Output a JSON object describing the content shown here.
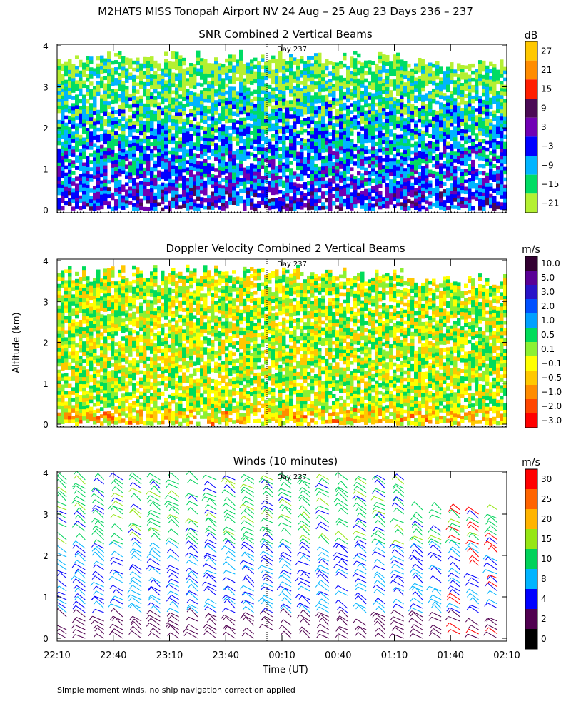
{
  "main_title": "M2HATS MISS Tonopah Airport NV  24 Aug – 25 Aug 23 Days 236 – 237",
  "y_axis_label": "Altitude (km)",
  "x_axis_label": "Time (UT)",
  "footnote": "Simple moment winds, no ship navigation correction applied",
  "day_marker_label": "Day 237",
  "chart_data": [
    {
      "id": "snr",
      "type": "heatmap",
      "title": "SNR Combined 2 Vertical Beams",
      "units": "dB",
      "ylim": [
        0,
        4
      ],
      "yticks": [
        "0",
        "1",
        "2",
        "3",
        "4"
      ],
      "colorbar_labels": [
        "27",
        "21",
        "15",
        "9",
        "3",
        "−3",
        "−9",
        "−15",
        "−21"
      ],
      "colorbar_colors": [
        "#ffc800",
        "#ff8c00",
        "#ff1e00",
        "#4b0a55",
        "#7000b4",
        "#0000ff",
        "#00b4ff",
        "#00dc64",
        "#b4f032"
      ],
      "data_ceiling_km": 3.9,
      "day_marker_time": "00:00"
    },
    {
      "id": "doppler",
      "type": "heatmap",
      "title": "Doppler Velocity Combined 2 Vertical Beams",
      "units": "m/s",
      "ylim": [
        0,
        4
      ],
      "yticks": [
        "0",
        "1",
        "2",
        "3",
        "4"
      ],
      "colorbar_labels": [
        "10.0",
        "5.0",
        "3.0",
        "2.0",
        "1.0",
        "0.5",
        "0.1",
        "−0.1",
        "−0.5",
        "−1.0",
        "−2.0",
        "−3.0"
      ],
      "colorbar_colors": [
        "#320032",
        "#5a0096",
        "#2814c8",
        "#0050ff",
        "#00a0ff",
        "#00dc5a",
        "#8cf032",
        "#ffff00",
        "#ffc800",
        "#ff8c00",
        "#ff4600",
        "#ff0000"
      ],
      "data_ceiling_km": 3.9,
      "day_marker_time": "00:00"
    },
    {
      "id": "winds",
      "type": "scatter",
      "title": "Winds (10 minutes)",
      "units": "m/s",
      "ylim": [
        0,
        4
      ],
      "yticks": [
        "0",
        "1",
        "2",
        "3",
        "4"
      ],
      "colorbar_labels": [
        "30",
        "25",
        "20",
        "15",
        "10",
        "8",
        "4",
        "2",
        "0"
      ],
      "colorbar_colors": [
        "#ff0000",
        "#ff6400",
        "#ffb400",
        "#96e614",
        "#00d25a",
        "#00b4ff",
        "#0000ff",
        "#500050",
        "#000000"
      ],
      "barb_times": [
        "22:15",
        "22:25",
        "22:35",
        "22:45",
        "22:55",
        "23:05",
        "23:15",
        "23:25",
        "23:35",
        "23:45",
        "23:55",
        "00:05",
        "00:15",
        "00:25",
        "00:35",
        "00:45",
        "00:55",
        "01:05",
        "01:15",
        "01:25",
        "01:35",
        "01:45",
        "01:55",
        "02:05"
      ],
      "day_marker_time": "00:00"
    }
  ],
  "x_axis": {
    "start": "22:10",
    "end": "02:10",
    "tick_labels": [
      "22:10",
      "22:40",
      "23:10",
      "23:40",
      "00:10",
      "00:40",
      "01:10",
      "01:40",
      "02:10"
    ]
  }
}
